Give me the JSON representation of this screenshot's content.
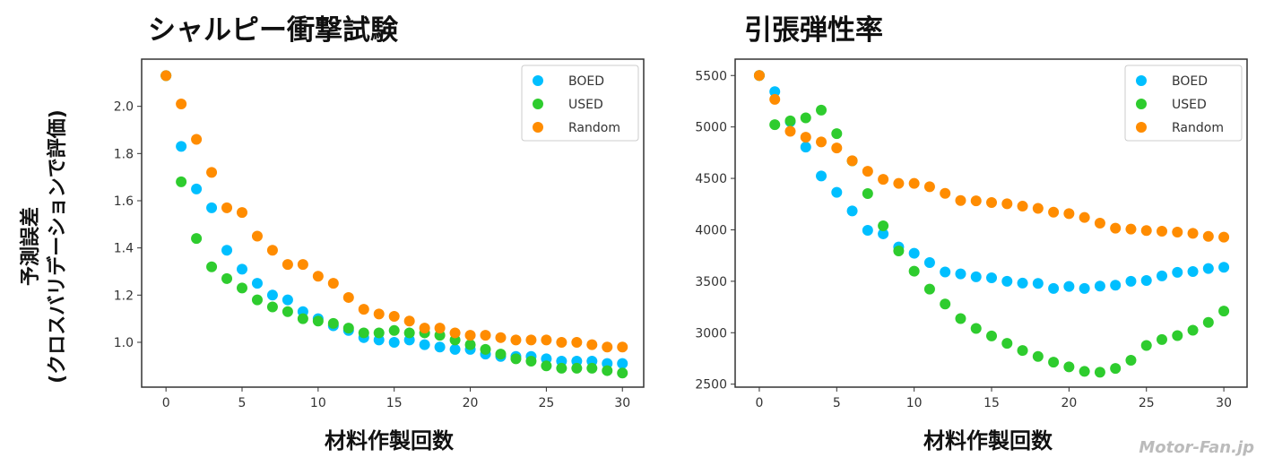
{
  "ylabel_line1": "予測誤差",
  "ylabel_line2": "(クロスバリデーションで評価)",
  "watermark": "Motor-Fan.jp",
  "chart_data": [
    {
      "type": "scatter",
      "title": "シャルピー衝撃試験",
      "xlabel": "材料作製回数",
      "ylabel": "予測誤差 (クロスバリデーションで評価)",
      "xlim": [
        -1.6,
        31.4
      ],
      "ylim": [
        0.81,
        2.2
      ],
      "xticks": [
        0,
        5,
        10,
        15,
        20,
        25,
        30
      ],
      "yticks": [
        1.0,
        1.2,
        1.4,
        1.6,
        1.8,
        2.0
      ],
      "ytick_labels": [
        "1.0",
        "1.2",
        "1.4",
        "1.6",
        "1.8",
        "2.0"
      ],
      "legend": "top-right",
      "grid": false,
      "x": [
        0,
        1,
        2,
        3,
        4,
        5,
        6,
        7,
        8,
        9,
        10,
        11,
        12,
        13,
        14,
        15,
        16,
        17,
        18,
        19,
        20,
        21,
        22,
        23,
        24,
        25,
        26,
        27,
        28,
        29,
        30
      ],
      "series": [
        {
          "name": "BOED",
          "color": "#00bfff",
          "values": [
            2.13,
            1.83,
            1.65,
            1.57,
            1.39,
            1.31,
            1.25,
            1.2,
            1.18,
            1.13,
            1.1,
            1.07,
            1.05,
            1.02,
            1.01,
            1.0,
            1.01,
            0.99,
            0.98,
            0.97,
            0.97,
            0.95,
            0.94,
            0.94,
            0.94,
            0.93,
            0.92,
            0.92,
            0.92,
            0.91,
            0.91
          ]
        },
        {
          "name": "USED",
          "color": "#2ecc2e",
          "values": [
            2.13,
            1.68,
            1.44,
            1.32,
            1.27,
            1.23,
            1.18,
            1.15,
            1.13,
            1.1,
            1.09,
            1.08,
            1.06,
            1.04,
            1.04,
            1.05,
            1.04,
            1.04,
            1.03,
            1.01,
            0.99,
            0.97,
            0.95,
            0.93,
            0.92,
            0.9,
            0.89,
            0.89,
            0.89,
            0.88,
            0.87
          ]
        },
        {
          "name": "Random",
          "color": "#ff8c00",
          "values": [
            2.13,
            2.01,
            1.86,
            1.72,
            1.57,
            1.55,
            1.45,
            1.39,
            1.33,
            1.33,
            1.28,
            1.25,
            1.19,
            1.14,
            1.12,
            1.11,
            1.09,
            1.06,
            1.06,
            1.04,
            1.03,
            1.03,
            1.02,
            1.01,
            1.01,
            1.01,
            1.0,
            1.0,
            0.99,
            0.98,
            0.98
          ]
        }
      ]
    },
    {
      "type": "scatter",
      "title": "引張弾性率",
      "xlabel": "材料作製回数",
      "ylabel": "",
      "xlim": [
        -1.56,
        31.5
      ],
      "ylim": [
        2471,
        5659
      ],
      "xticks": [
        0,
        5,
        10,
        15,
        20,
        25,
        30
      ],
      "yticks": [
        2500,
        3000,
        3500,
        4000,
        4500,
        5000,
        5500
      ],
      "ytick_labels": [
        "2500",
        "3000",
        "3500",
        "4000",
        "4500",
        "5000",
        "5500"
      ],
      "legend": "top-right",
      "grid": false,
      "x": [
        0,
        1,
        2,
        3,
        4,
        5,
        6,
        7,
        8,
        9,
        10,
        11,
        12,
        13,
        14,
        15,
        16,
        17,
        18,
        19,
        20,
        21,
        22,
        23,
        24,
        25,
        26,
        27,
        28,
        29,
        30
      ],
      "series": [
        {
          "name": "BOED",
          "color": "#00bfff",
          "values": [
            5500,
            5343,
            5050,
            4804,
            4523,
            4364,
            4184,
            3995,
            3961,
            3833,
            3772,
            3682,
            3590,
            3572,
            3543,
            3534,
            3500,
            3482,
            3479,
            3430,
            3450,
            3430,
            3453,
            3462,
            3500,
            3508,
            3552,
            3587,
            3595,
            3624,
            3636
          ]
        },
        {
          "name": "USED",
          "color": "#2ecc2e",
          "values": [
            5500,
            5022,
            5059,
            5088,
            5164,
            4935,
            4670,
            4352,
            4039,
            3795,
            3598,
            3424,
            3279,
            3137,
            3042,
            2969,
            2897,
            2827,
            2769,
            2714,
            2668,
            2624,
            2616,
            2653,
            2732,
            2876,
            2934,
            2972,
            3024,
            3100,
            3210
          ]
        },
        {
          "name": "Random",
          "color": "#ff8c00",
          "values": [
            5500,
            5268,
            4958,
            4900,
            4854,
            4796,
            4671,
            4569,
            4491,
            4451,
            4451,
            4419,
            4355,
            4285,
            4282,
            4265,
            4253,
            4230,
            4209,
            4172,
            4158,
            4120,
            4065,
            4016,
            4007,
            3993,
            3987,
            3978,
            3966,
            3937,
            3929
          ]
        }
      ]
    }
  ]
}
